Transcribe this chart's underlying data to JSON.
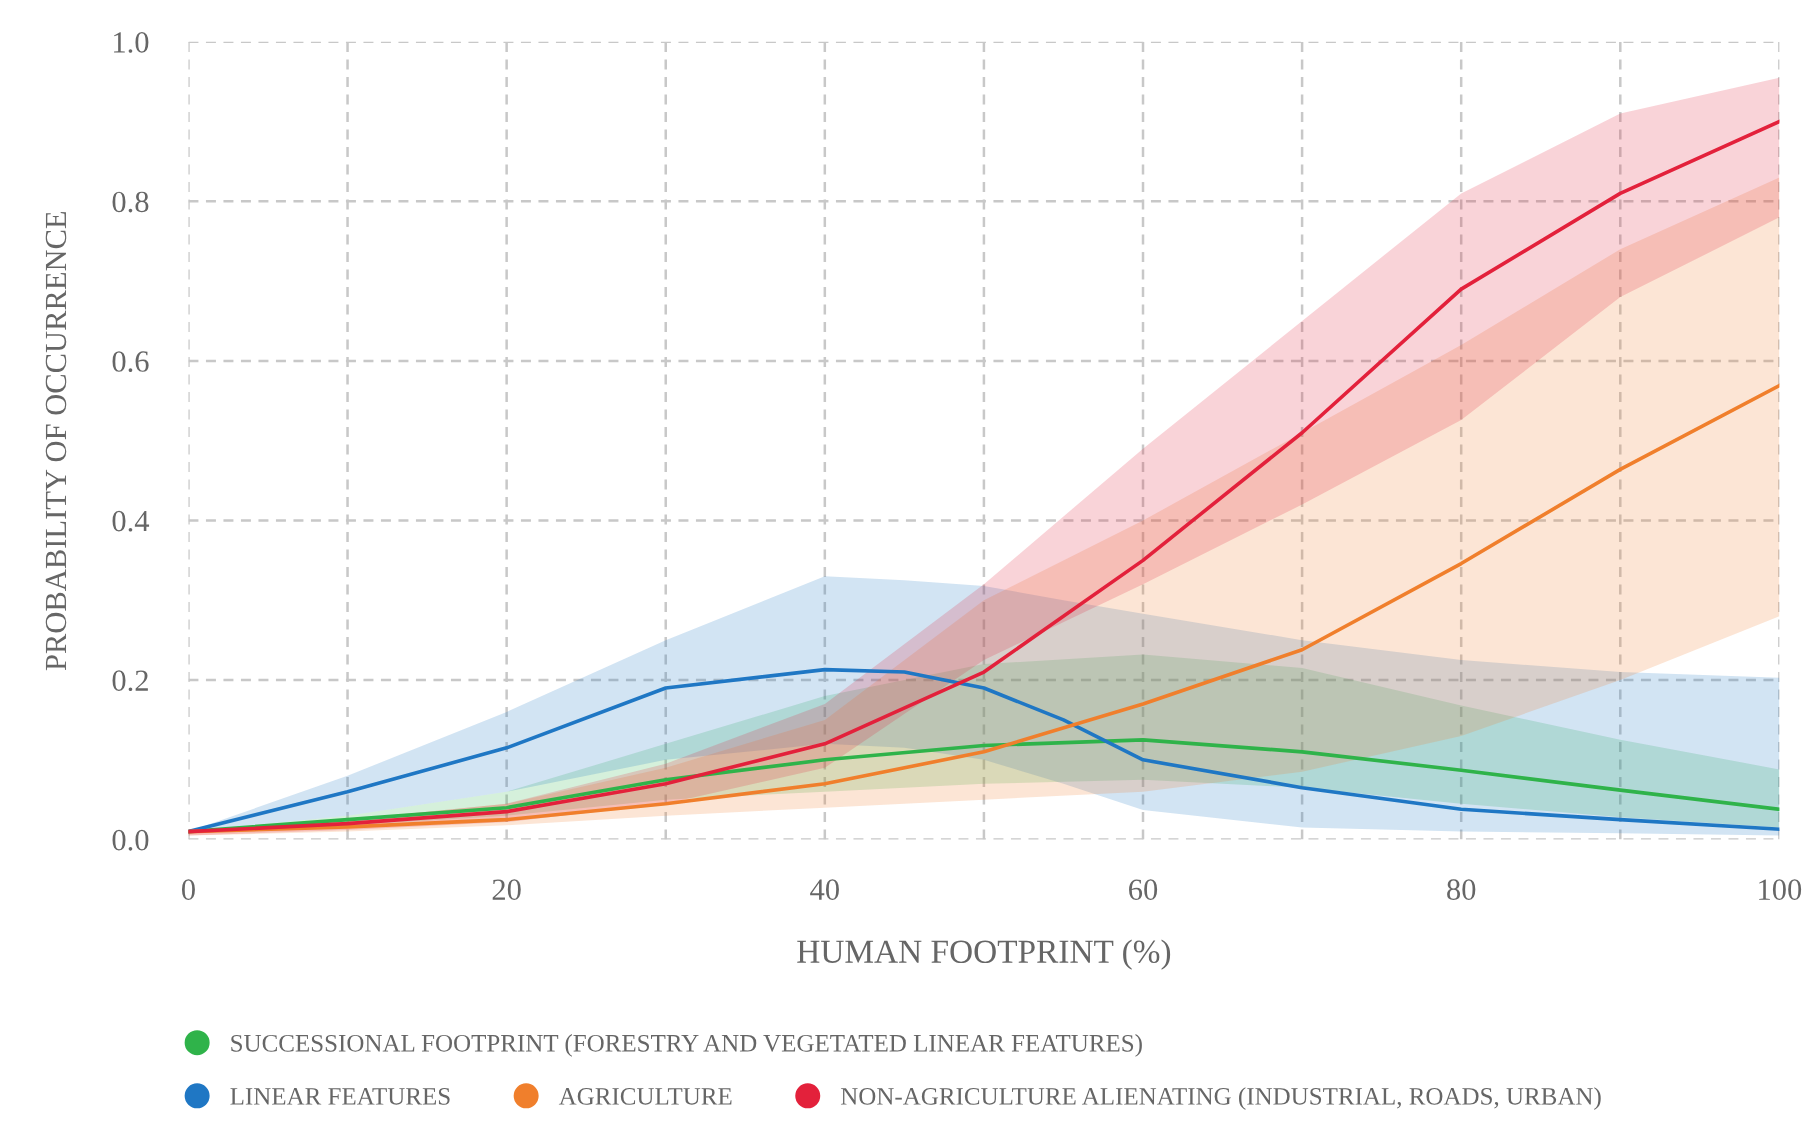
{
  "chart_data": {
    "type": "line",
    "xlabel": "HUMAN FOOTPRINT (%)",
    "ylabel": "PROBABILITY OF OCCURRENCE",
    "xlim": [
      0,
      100
    ],
    "ylim": [
      0,
      1
    ],
    "xticks": [
      0,
      {
        "value": 10,
        "label": null
      },
      20,
      {
        "value": 30,
        "label": null
      },
      40,
      {
        "value": 50,
        "label": null
      },
      60,
      {
        "value": 70,
        "label": null
      },
      80,
      {
        "value": 90,
        "label": null
      },
      100
    ],
    "yticks": [
      {
        "value": 0,
        "label": "0.0"
      },
      {
        "value": 0.2,
        "label": "0.2"
      },
      {
        "value": 0.4,
        "label": "0.4"
      },
      {
        "value": 0.6,
        "label": "0.6"
      },
      {
        "value": 0.8,
        "label": "0.8"
      },
      {
        "value": 1,
        "label": "1.0"
      }
    ],
    "grid": true,
    "legend": "bottom",
    "line_style": "solid",
    "marker": "none",
    "series": [
      {
        "name": "SUCCESSIONAL FOOTPRINT (FORESTRY AND VEGETATED LINEAR FEATURES)",
        "color": "#2fb34a",
        "x": [
          0,
          10,
          20,
          30,
          40,
          50,
          60,
          70,
          80,
          90,
          100
        ],
        "values": [
          0.01,
          0.025,
          0.04,
          0.075,
          0.1,
          0.118,
          0.125,
          0.11,
          0.087,
          0.062,
          0.038
        ],
        "lower": [
          0.01,
          0.018,
          0.03,
          0.05,
          0.06,
          0.07,
          0.075,
          0.065,
          0.045,
          0.028,
          0.015
        ],
        "upper": [
          0.01,
          0.03,
          0.06,
          0.12,
          0.18,
          0.22,
          0.232,
          0.215,
          0.168,
          0.125,
          0.088
        ]
      },
      {
        "name": "LINEAR FEATURES",
        "color": "#1f77c4",
        "x": [
          0,
          10,
          20,
          30,
          40,
          45,
          50,
          55,
          60,
          70,
          80,
          90,
          100
        ],
        "values": [
          0.01,
          0.06,
          0.115,
          0.19,
          0.213,
          0.21,
          0.19,
          0.15,
          0.1,
          0.065,
          0.038,
          0.025,
          0.013
        ],
        "lower": [
          0.01,
          0.03,
          0.06,
          0.1,
          0.12,
          0.115,
          0.1,
          0.07,
          0.037,
          0.015,
          0.01,
          0.008,
          0.005
        ],
        "upper": [
          0.01,
          0.08,
          0.16,
          0.25,
          0.33,
          0.325,
          0.318,
          0.3,
          0.283,
          0.25,
          0.225,
          0.21,
          0.203
        ]
      },
      {
        "name": "AGRICULTURE",
        "color": "#f07f2c",
        "x": [
          0,
          10,
          20,
          30,
          40,
          50,
          60,
          70,
          80,
          90,
          100
        ],
        "values": [
          0.01,
          0.016,
          0.025,
          0.045,
          0.07,
          0.11,
          0.17,
          0.238,
          0.346,
          0.464,
          0.569
        ],
        "lower": [
          0.005,
          0.01,
          0.018,
          0.03,
          0.04,
          0.05,
          0.06,
          0.085,
          0.13,
          0.2,
          0.28
        ],
        "upper": [
          0.01,
          0.025,
          0.045,
          0.09,
          0.15,
          0.3,
          0.4,
          0.51,
          0.62,
          0.74,
          0.83
        ]
      },
      {
        "name": "NON-AGRICULTURE ALIENATING (INDUSTRIAL, ROADS, URBAN)",
        "color": "#e3213b",
        "x": [
          0,
          10,
          20,
          30,
          40,
          50,
          60,
          70,
          80,
          90,
          100
        ],
        "values": [
          0.01,
          0.02,
          0.035,
          0.07,
          0.12,
          0.21,
          0.35,
          0.51,
          0.69,
          0.81,
          0.9
        ],
        "lower": [
          0.005,
          0.012,
          0.022,
          0.045,
          0.09,
          0.225,
          0.32,
          0.42,
          0.526,
          0.68,
          0.78
        ],
        "upper": [
          0.01,
          0.025,
          0.045,
          0.095,
          0.17,
          0.32,
          0.49,
          0.65,
          0.81,
          0.91,
          0.955
        ]
      }
    ]
  }
}
